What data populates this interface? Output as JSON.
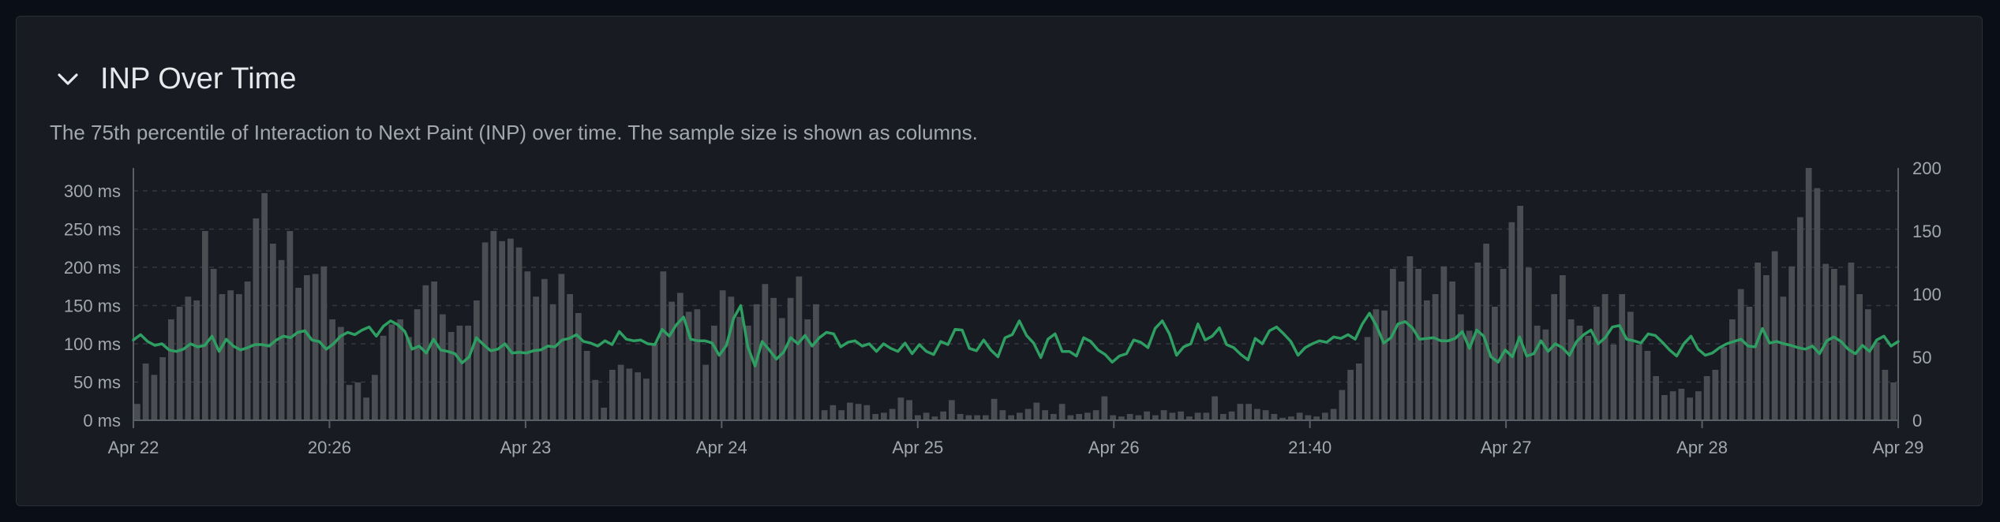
{
  "panel": {
    "title": "INP Over Time",
    "subtitle": "The 75th percentile of Interaction to Next Paint (INP) over time. The sample size is shown as columns."
  },
  "colors": {
    "good": "#2e9e62",
    "needs_improvement": "#e2b84e",
    "bars": "#4a4d52",
    "grid": "#343840",
    "axis_text": "#a3a7ae"
  },
  "chart_data": {
    "type": "bar+line",
    "y_left": {
      "ticks": [
        "0 ms",
        "50 ms",
        "100 ms",
        "150 ms",
        "200 ms",
        "250 ms",
        "300 ms"
      ],
      "range": [
        0,
        330
      ]
    },
    "y_right": {
      "ticks": [
        "0",
        "50",
        "100",
        "150",
        "200"
      ],
      "range": [
        0,
        200
      ]
    },
    "x_ticks": [
      "Apr 22",
      "20:26",
      "Apr 23",
      "Apr 24",
      "Apr 25",
      "Apr 26",
      "21:40",
      "Apr 27",
      "Apr 28",
      "Apr 29"
    ],
    "threshold_ms": 200,
    "grid": true,
    "series": [
      {
        "kind": "bars",
        "axis": "right",
        "values": [
          13,
          45,
          36,
          50,
          80,
          90,
          98,
          95,
          150,
          120,
          100,
          103,
          100,
          110,
          160,
          180,
          140,
          127,
          150,
          105,
          115,
          116,
          122,
          80,
          74,
          28,
          30,
          18,
          36,
          67,
          76,
          80,
          66,
          88,
          107,
          110,
          84,
          70,
          75,
          75,
          95,
          141,
          150,
          142,
          144,
          137,
          118,
          98,
          112,
          92,
          116,
          100,
          85,
          55,
          32,
          10,
          40,
          44,
          41,
          38,
          33,
          60,
          118,
          94,
          101,
          86,
          88,
          44,
          75,
          103,
          98,
          82,
          75,
          92,
          108,
          97,
          81,
          97,
          114,
          80,
          92,
          8,
          12,
          8,
          14,
          13,
          12,
          5,
          6,
          9,
          18,
          16,
          4,
          6,
          3,
          7,
          16,
          5,
          4,
          4,
          4,
          17,
          8,
          4,
          6,
          9,
          14,
          8,
          5,
          13,
          4,
          5,
          6,
          8,
          19,
          4,
          3,
          5,
          4,
          7,
          4,
          8,
          6,
          7,
          3,
          6,
          6,
          19,
          5,
          7,
          13,
          13,
          9,
          8,
          5,
          2,
          3,
          6,
          4,
          3,
          6,
          9,
          24,
          40,
          45,
          66,
          88,
          87,
          120,
          110,
          130,
          120,
          95,
          100,
          122,
          110,
          84,
          71,
          125,
          140,
          90,
          120,
          157,
          170,
          121,
          75,
          72,
          100,
          115,
          80,
          75,
          67,
          90,
          100,
          60,
          100,
          86,
          60,
          55,
          35,
          20,
          23,
          25,
          18,
          23,
          35,
          40,
          58,
          80,
          104,
          90,
          125,
          115,
          134,
          98,
          122,
          161,
          200,
          184,
          124,
          120,
          107,
          125,
          100,
          88,
          62,
          40,
          30
        ],
        "color": "#4a4d52"
      },
      {
        "kind": "line",
        "axis": "left",
        "values": [
          105,
          112,
          103,
          98,
          100,
          92,
          90,
          93,
          100,
          96,
          98,
          110,
          90,
          106,
          97,
          92,
          95,
          99,
          99,
          97,
          105,
          110,
          108,
          115,
          117,
          105,
          103,
          93,
          100,
          110,
          115,
          112,
          118,
          122,
          110,
          123,
          130,
          125,
          116,
          93,
          97,
          88,
          106,
          92,
          90,
          87,
          75,
          83,
          108,
          99,
          91,
          93,
          100,
          88,
          89,
          88,
          91,
          92,
          97,
          96,
          105,
          107,
          112,
          103,
          101,
          97,
          104,
          99,
          116,
          106,
          104,
          105,
          100,
          99,
          119,
          110,
          125,
          135,
          106,
          104,
          104,
          101,
          85,
          98,
          133,
          150,
          96,
          71,
          103,
          92,
          80,
          89,
          108,
          100,
          111,
          97,
          108,
          115,
          113,
          96,
          102,
          104,
          97,
          100,
          90,
          100,
          94,
          90,
          101,
          87,
          99,
          90,
          86,
          103,
          99,
          119,
          118,
          94,
          91,
          105,
          92,
          83,
          108,
          112,
          130,
          111,
          101,
          82,
          106,
          113,
          90,
          90,
          84,
          108,
          103,
          92,
          86,
          76,
          84,
          87,
          105,
          102,
          95,
          120,
          130,
          113,
          85,
          96,
          100,
          126,
          105,
          110,
          121,
          99,
          95,
          86,
          79,
          107,
          100,
          117,
          122,
          113,
          103,
          85,
          95,
          100,
          104,
          102,
          109,
          107,
          112,
          106,
          126,
          140,
          123,
          101,
          108,
          126,
          129,
          121,
          106,
          107,
          108,
          104,
          104,
          107,
          116,
          94,
          118,
          110,
          83,
          76,
          92,
          83,
          109,
          84,
          87,
          104,
          90,
          100,
          95,
          85,
          103,
          112,
          118,
          100,
          108,
          122,
          124,
          106,
          104,
          101,
          113,
          111,
          102,
          92,
          84,
          100,
          110,
          93,
          85,
          88,
          95,
          100,
          103,
          106,
          97,
          96,
          120,
          101,
          103,
          100,
          98,
          95,
          93,
          97,
          87,
          104,
          109,
          103,
          93,
          87,
          98,
          90,
          105,
          110,
          97,
          103
        ],
        "color": "#2e9e62"
      }
    ]
  }
}
